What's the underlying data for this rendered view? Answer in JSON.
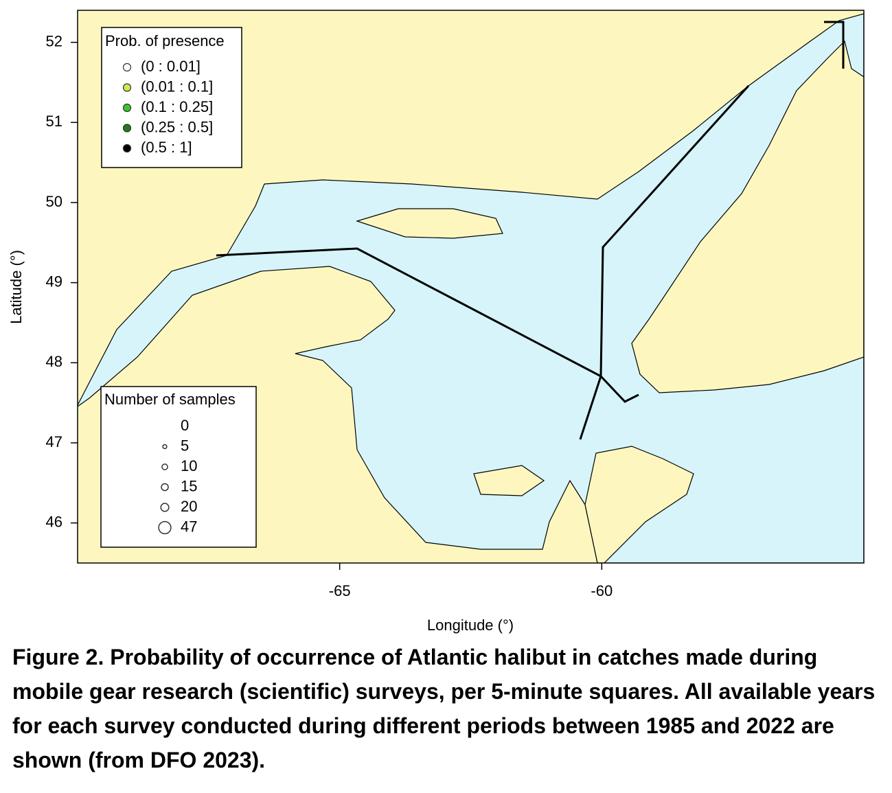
{
  "map": {
    "xlabel": "Longitude (°)",
    "ylabel": "Latitude (°)",
    "xlim": [
      -70,
      -55
    ],
    "ylim": [
      45.5,
      52.4
    ],
    "xticks": [
      -65,
      -60
    ],
    "yticks": [
      46,
      47,
      48,
      49,
      50,
      51,
      52
    ],
    "presence_legend": {
      "title": "Prob. of presence",
      "entries": [
        {
          "label": "(0 : 0.01]",
          "color": "#ffffff"
        },
        {
          "label": "(0.01 : 0.1]",
          "color": "#c8ec4a"
        },
        {
          "label": "(0.1 : 0.25]",
          "color": "#36c82e"
        },
        {
          "label": "(0.25 : 0.5]",
          "color": "#1f7a1f"
        },
        {
          "label": "(0.5 : 1]",
          "color": "#000000"
        }
      ]
    },
    "samples_legend": {
      "title": "Number of samples",
      "sizes": [
        0,
        5,
        10,
        15,
        20,
        47
      ]
    }
  },
  "caption": "Figure 2. Probability of occurrence of Atlantic halibut in catches made during mobile gear research (scientific) surveys, per 5-minute squares. All available years for each survey conducted during different periods between 1985 and 2022 are shown (from DFO 2023)."
}
